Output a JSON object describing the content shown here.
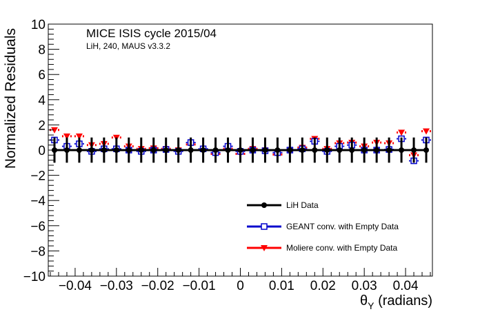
{
  "chart_data": {
    "type": "scatter",
    "title": "MICE ISIS cycle 2015/04",
    "subtitle": "LiH, 240, MAUS v3.3.2",
    "xlabel": "θ",
    "xlabel_sub": "Y",
    "xlabel_units": " (radians)",
    "ylabel": "Normalized Residuals",
    "xlim": [
      -0.0465,
      0.0465
    ],
    "ylim": [
      -10,
      10
    ],
    "x_ticks": [
      -0.04,
      -0.03,
      -0.02,
      -0.01,
      0,
      0.01,
      0.02,
      0.03,
      0.04
    ],
    "x_tick_labels": [
      "−0.04",
      "−0.03",
      "−0.02",
      "−0.01",
      "0",
      "0.01",
      "0.02",
      "0.03",
      "0.04"
    ],
    "y_ticks": [
      -10,
      -8,
      -6,
      -4,
      -2,
      0,
      2,
      4,
      6,
      8,
      10
    ],
    "y_tick_labels": [
      "−10",
      "−8",
      "−6",
      "−4",
      "−2",
      "0",
      "2",
      "4",
      "6",
      "8",
      "10"
    ],
    "grid": false,
    "legend_position": "bottom-right",
    "x": [
      -0.045,
      -0.042,
      -0.039,
      -0.036,
      -0.033,
      -0.03,
      -0.027,
      -0.024,
      -0.021,
      -0.018,
      -0.015,
      -0.012,
      -0.009,
      -0.006,
      -0.003,
      0.0,
      0.003,
      0.006,
      0.009,
      0.012,
      0.015,
      0.018,
      0.021,
      0.024,
      0.027,
      0.03,
      0.033,
      0.036,
      0.039,
      0.042,
      0.045
    ],
    "series": [
      {
        "name": "LiH Data",
        "color": "#000000",
        "marker": "circle",
        "values": [
          0,
          0,
          0,
          0,
          0,
          0,
          0,
          0,
          0,
          0,
          0,
          0,
          0,
          0,
          0,
          0,
          0,
          0,
          0,
          0,
          0,
          0,
          0,
          0,
          0,
          0,
          0,
          0,
          0,
          0,
          0
        ],
        "errors": [
          1,
          1,
          1,
          1,
          1,
          1,
          1,
          1,
          1,
          1,
          1,
          1,
          1,
          1,
          1,
          1,
          1,
          1,
          1,
          1,
          1,
          1,
          1,
          1,
          1,
          1,
          1,
          1,
          1,
          1,
          1
        ]
      },
      {
        "name": "GEANT conv. with Empty Data",
        "color": "#0000cc",
        "marker": "open-square",
        "values": [
          0.8,
          0.3,
          0.5,
          -0.1,
          0.1,
          0.1,
          0.0,
          -0.1,
          0.0,
          0.05,
          -0.1,
          0.6,
          0.1,
          -0.2,
          0.3,
          -0.1,
          0.0,
          -0.05,
          -0.2,
          0.0,
          0.1,
          0.7,
          -0.1,
          0.3,
          0.4,
          0.0,
          0.0,
          0.05,
          0.9,
          -0.85,
          0.8
        ]
      },
      {
        "name": "Moliere conv. with Empty Data",
        "color": "#ff0000",
        "marker": "filled-triangle-down",
        "values": [
          1.6,
          1.1,
          1.1,
          0.4,
          0.5,
          1.0,
          0.3,
          0.1,
          0.15,
          0.1,
          0.0,
          0.45,
          0.0,
          -0.3,
          0.1,
          -0.3,
          0.1,
          0.0,
          -0.35,
          0.0,
          0.2,
          0.9,
          0.1,
          0.55,
          0.6,
          0.3,
          0.6,
          0.55,
          1.4,
          -0.4,
          1.5
        ]
      }
    ]
  }
}
